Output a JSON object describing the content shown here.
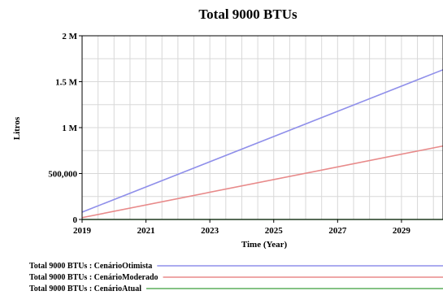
{
  "chart_data": {
    "type": "line",
    "title": "Total 9000 BTUs",
    "xlabel": "Time (Year)",
    "ylabel": "Litros",
    "xlim": [
      2019,
      2030.3
    ],
    "ylim": [
      0,
      2000000
    ],
    "x_ticks": [
      2019,
      2021,
      2023,
      2025,
      2027,
      2029
    ],
    "x_tick_labels": [
      "2019",
      "2021",
      "2023",
      "2025",
      "2027",
      "2029"
    ],
    "y_ticks": [
      0,
      500000,
      1000000,
      1500000,
      2000000
    ],
    "y_tick_labels": [
      "0",
      "500,000",
      "1 M",
      "1.5 M",
      "2 M"
    ],
    "grid": true,
    "legend_position": "bottom",
    "series": [
      {
        "name": "Total 9000 BTUs : CenárioOtimista",
        "color": "#8f8fea",
        "x": [
          2019,
          2030.3
        ],
        "y": [
          80000,
          1630000
        ]
      },
      {
        "name": "Total 9000 BTUs : CenárioModerado",
        "color": "#e88a8a",
        "x": [
          2019,
          2030.3
        ],
        "y": [
          20000,
          800000
        ]
      },
      {
        "name": "Total 9000 BTUs : CenárioAtual",
        "color": "#5cad5c",
        "x": [
          2019,
          2030.3
        ],
        "y": [
          0,
          0
        ]
      }
    ]
  }
}
